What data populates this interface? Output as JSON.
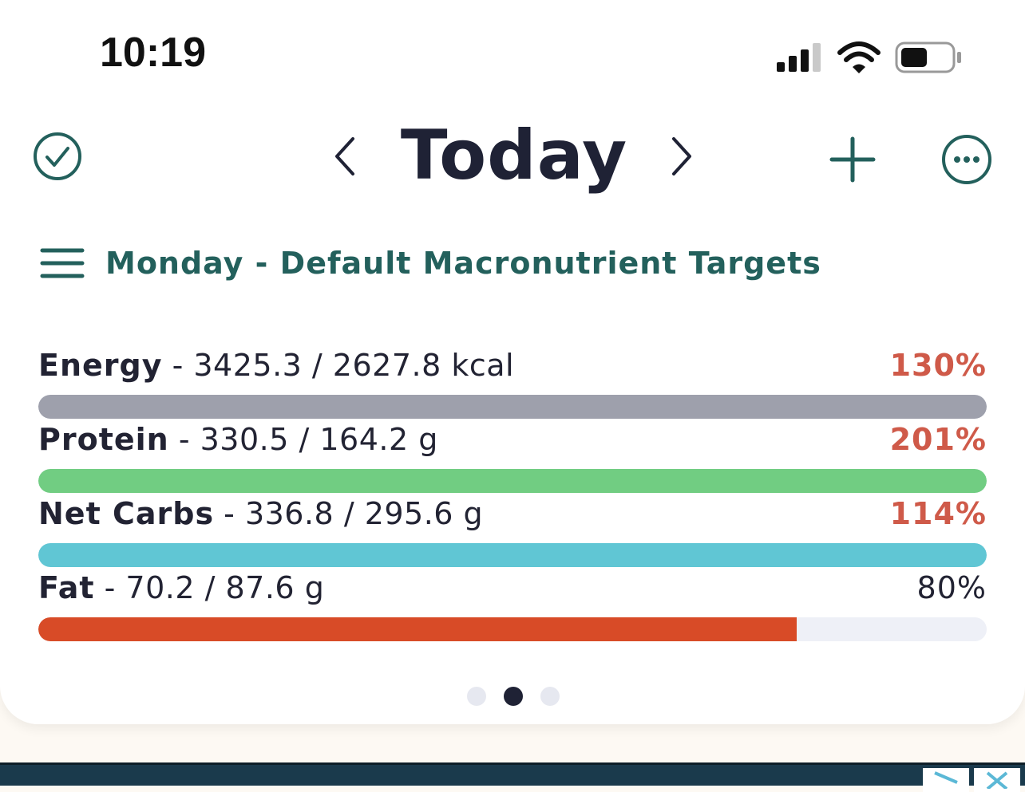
{
  "status_bar": {
    "time": "10:19"
  },
  "header": {
    "title": "Today",
    "icons": {
      "complete": "check-circle-icon",
      "prev": "chevron-left-icon",
      "next": "chevron-right-icon",
      "add": "plus-icon",
      "more": "ellipsis-circle-icon"
    }
  },
  "targets": {
    "label": "Monday - Default Macronutrient Targets"
  },
  "macros": [
    {
      "name": "Energy",
      "value": "- 3425.3 / 2627.8 kcal",
      "percent_text": "130%",
      "progress": 1.0,
      "bar_color": "#9ea0ac",
      "percent_color": "#cf5a49"
    },
    {
      "name": "Protein",
      "value": "- 330.5 / 164.2 g",
      "percent_text": "201%",
      "progress": 1.0,
      "bar_color": "#71cd82",
      "percent_color": "#cf5a49"
    },
    {
      "name": "Net Carbs",
      "value": "- 336.8 / 295.6 g",
      "percent_text": "114%",
      "progress": 1.0,
      "bar_color": "#60c6d4",
      "percent_color": "#cf5a49"
    },
    {
      "name": "Fat",
      "value": "- 70.2 / 87.6 g",
      "percent_text": "80%",
      "progress": 0.8,
      "bar_color": "#d84b27",
      "percent_color": "#222333"
    }
  ],
  "pager": {
    "count": 3,
    "active": 1
  },
  "colors": {
    "accent": "#23605c",
    "title": "#1f2235",
    "over_target": "#cf5a49"
  }
}
